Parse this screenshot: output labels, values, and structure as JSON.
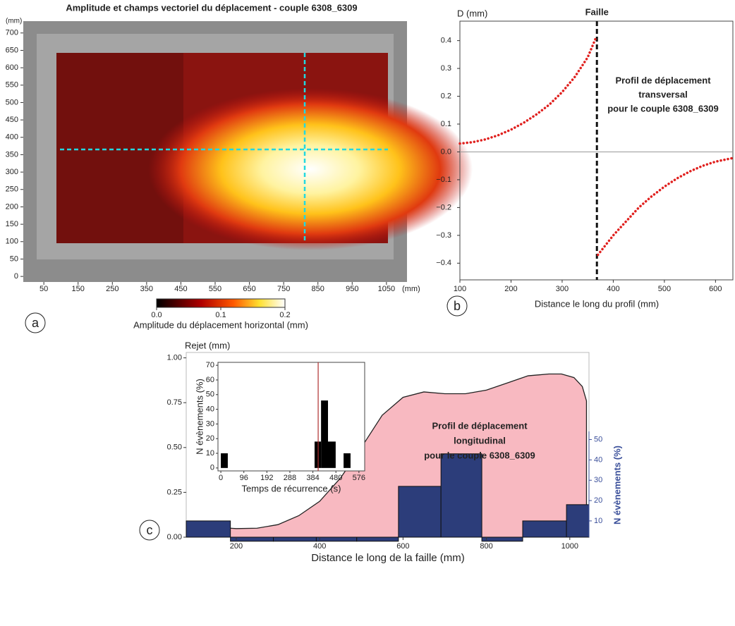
{
  "chart_data": [
    {
      "type": "image",
      "title": "Amplitude et champs vectoriel du déplacement  - couple 6308_6309",
      "panel_label": "a",
      "x_unit": "(mm)",
      "y_unit": "(mm)",
      "xlim": [
        -10,
        1110
      ],
      "ylim": [
        -16,
        734
      ],
      "xticks": [
        50,
        150,
        250,
        350,
        450,
        550,
        650,
        750,
        850,
        950,
        1050
      ],
      "yticks": [
        0,
        50,
        100,
        150,
        200,
        250,
        300,
        350,
        400,
        450,
        500,
        550,
        600,
        650,
        700
      ],
      "colorbar": {
        "label": "Amplitude du déplacement horizontal (mm)",
        "lim": [
          0,
          0.2
        ],
        "ticks": [
          {
            "value": 0,
            "label": "0.0"
          },
          {
            "value": 0.1,
            "label": "0.1"
          },
          {
            "value": 0.2,
            "label": "0.2"
          }
        ]
      }
    },
    {
      "type": "line",
      "title": "Faille",
      "ylabel": "D (mm)",
      "xlabel": "Distance le long du profil (mm)",
      "panel_label": "b",
      "annotation": [
        "Profil de déplacement",
        "transversal",
        "pour le couple 6308_6309"
      ],
      "xlim": [
        100,
        634
      ],
      "ylim": [
        -0.46,
        0.47
      ],
      "xticks": [
        100,
        200,
        300,
        400,
        500,
        600
      ],
      "yticks": [
        {
          "value": -0.4,
          "label": "−0.4"
        },
        {
          "value": -0.3,
          "label": "−0.3"
        },
        {
          "value": -0.2,
          "label": "−0.2"
        },
        {
          "value": -0.1,
          "label": "−0.1"
        },
        {
          "value": 0,
          "label": "0.0"
        },
        0.1,
        0.2,
        0.3,
        0.4
      ],
      "vline": 368,
      "hline": 0,
      "series": [
        {
          "color": "#e0201e",
          "x": [
            100,
            125,
            150,
            175,
            200,
            225,
            250,
            275,
            300,
            325,
            350,
            366
          ],
          "values": [
            0.03,
            0.035,
            0.045,
            0.06,
            0.08,
            0.105,
            0.135,
            0.17,
            0.215,
            0.27,
            0.34,
            0.41
          ]
        },
        {
          "color": "#e0201e",
          "x": [
            370,
            400,
            425,
            450,
            475,
            500,
            525,
            550,
            575,
            600,
            634
          ],
          "values": [
            -0.37,
            -0.3,
            -0.25,
            -0.2,
            -0.16,
            -0.125,
            -0.095,
            -0.07,
            -0.05,
            -0.035,
            -0.022
          ]
        }
      ]
    },
    {
      "type": "area",
      "ylabel": "Rejet (mm)",
      "xlabel": "Distance le long de la faille (mm)",
      "y2label": "N évènements (%)",
      "panel_label": "c",
      "annotation": [
        "Profil de déplacement",
        "longitudinal",
        "pour le couple 6308_6309"
      ],
      "xlim": [
        80,
        1046
      ],
      "ylim": [
        0,
        1.03
      ],
      "xticks": [
        200,
        400,
        600,
        800,
        1000
      ],
      "yticks": [
        {
          "value": 0,
          "label": "0.00"
        },
        0.25,
        {
          "value": 0.5,
          "label": "0.50"
        },
        0.75,
        {
          "value": 1,
          "label": "1.00"
        }
      ],
      "y2lim": [
        2,
        54
      ],
      "y2ticks": [
        10,
        20,
        30,
        40,
        50
      ],
      "color": "#f8b9c1",
      "x": [
        185,
        200,
        250,
        300,
        350,
        400,
        450,
        500,
        550,
        600,
        650,
        700,
        750,
        800,
        850,
        900,
        950,
        980,
        1010,
        1030,
        1040
      ],
      "values": [
        0.05,
        0.048,
        0.05,
        0.07,
        0.12,
        0.2,
        0.33,
        0.5,
        0.68,
        0.78,
        0.81,
        0.8,
        0.8,
        0.82,
        0.86,
        0.9,
        0.91,
        0.91,
        0.89,
        0.84,
        0.76
      ],
      "bars": {
        "axis": "y2",
        "color": "#2c3d7a",
        "bins": [
          80,
          186,
          289,
          392,
          489,
          589,
          691,
          789,
          887,
          992,
          1046
        ],
        "values": [
          10,
          0,
          0,
          0,
          0,
          27,
          43,
          0,
          10,
          18
        ]
      }
    },
    {
      "type": "histogram",
      "xlabel": "Temps de récurrence (s)",
      "ylabel": "N évènements (%)",
      "xlim": [
        -12,
        600
      ],
      "ylim": [
        -2,
        72
      ],
      "xticks": [
        0,
        96,
        192,
        288,
        384,
        480,
        576
      ],
      "yticks": [
        0,
        10,
        20,
        30,
        40,
        50,
        60,
        70
      ],
      "bins": [
        0,
        29,
        391,
        418,
        447,
        479,
        512,
        541
      ],
      "values": [
        10,
        0,
        18,
        46,
        18,
        0,
        10
      ],
      "color": "#000000",
      "vline": 406,
      "vline_color": "#b03030"
    }
  ]
}
